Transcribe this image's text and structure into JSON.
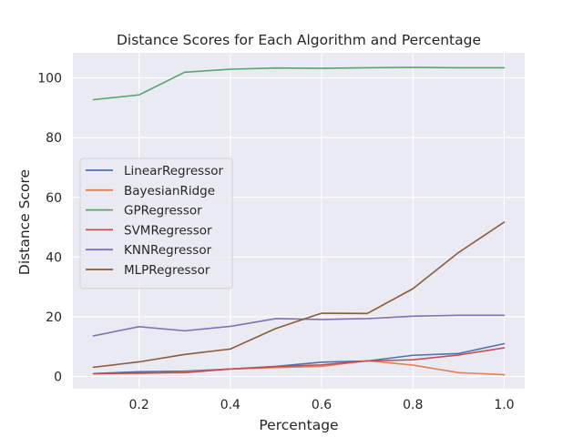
{
  "chart_data": {
    "type": "line",
    "title": "Distance Scores for Each Algorithm and Percentage",
    "xlabel": "Percentage",
    "ylabel": "Distance Score",
    "xlim": [
      0.055,
      1.045
    ],
    "ylim": [
      -4.1,
      108.4
    ],
    "xticks": [
      0.2,
      0.4,
      0.6,
      0.8,
      1.0
    ],
    "xtick_labels": [
      "0.2",
      "0.4",
      "0.6",
      "0.8",
      "1.0"
    ],
    "yticks": [
      0,
      20,
      40,
      60,
      80,
      100
    ],
    "ytick_labels": [
      "0",
      "20",
      "40",
      "60",
      "80",
      "100"
    ],
    "grid": true,
    "legend_position": "center-left",
    "x": [
      0.1,
      0.2,
      0.3,
      0.4,
      0.5,
      0.6,
      0.7,
      0.8,
      0.9,
      1.0
    ],
    "series": [
      {
        "name": "LinearRegressor",
        "color": "#4c72b0",
        "values": [
          1.0,
          1.6,
          1.8,
          2.5,
          3.4,
          4.8,
          5.2,
          7.1,
          7.7,
          11.0
        ]
      },
      {
        "name": "BayesianRidge",
        "color": "#dd8452",
        "values": [
          1.0,
          1.0,
          1.5,
          2.5,
          3.0,
          3.4,
          5.3,
          3.8,
          1.3,
          0.6
        ]
      },
      {
        "name": "GPRegressor",
        "color": "#55a868",
        "values": [
          92.7,
          94.3,
          101.9,
          102.9,
          103.3,
          103.2,
          103.4,
          103.5,
          103.4,
          103.4
        ]
      },
      {
        "name": "SVMRegressor",
        "color": "#c44e52",
        "values": [
          0.9,
          1.2,
          1.3,
          2.5,
          3.3,
          3.9,
          5.2,
          5.6,
          7.2,
          9.6
        ]
      },
      {
        "name": "KNNRegressor",
        "color": "#8172b3",
        "values": [
          13.6,
          16.7,
          15.3,
          16.8,
          19.4,
          19.1,
          19.4,
          20.2,
          20.5,
          20.5
        ]
      },
      {
        "name": "MLPRegressor",
        "color": "#8c5a3c",
        "values": [
          3.1,
          4.9,
          7.4,
          9.2,
          16.1,
          21.2,
          21.1,
          29.4,
          41.5,
          51.7
        ]
      }
    ],
    "colors": {
      "background": "#eaeaf2",
      "grid": "#ffffff",
      "text": "#262626"
    }
  }
}
